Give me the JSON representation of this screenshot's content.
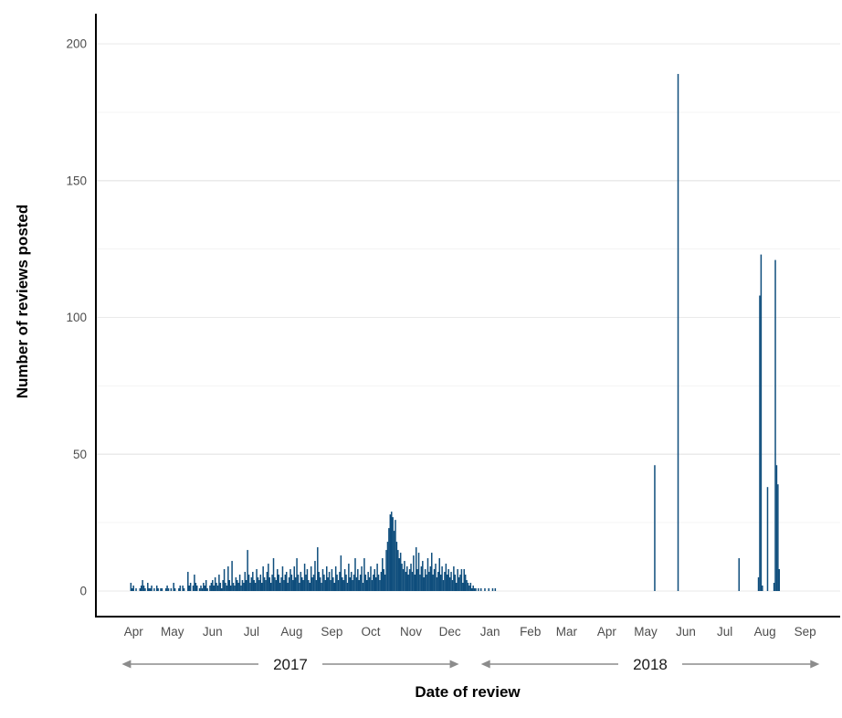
{
  "chart_data": {
    "type": "bar",
    "title": "",
    "xlabel": "Date of review",
    "ylabel": "Number of reviews posted",
    "legend": "none",
    "grid": "horizontal-only",
    "bar_color": "#0e4d7c",
    "axis_line_color": "#000000",
    "major_grid_color": "#eaeaea",
    "minor_grid_color": "#f4f4f4",
    "tick_label_color": "#4d4d4d",
    "annotation_arrow_color": "#8c8c8c",
    "y_axis": {
      "ticks": [
        0,
        50,
        100,
        150,
        200
      ],
      "minor_ticks": [
        25,
        75,
        125,
        175
      ],
      "range": [
        0,
        210
      ]
    },
    "x_axis": {
      "unit": "day",
      "domain": [
        "2017-03-03",
        "2018-09-28"
      ],
      "month_ticks": [
        {
          "label": "Apr",
          "date": "2017-04-01"
        },
        {
          "label": "May",
          "date": "2017-05-01"
        },
        {
          "label": "Jun",
          "date": "2017-06-01"
        },
        {
          "label": "Jul",
          "date": "2017-07-01"
        },
        {
          "label": "Aug",
          "date": "2017-08-01"
        },
        {
          "label": "Sep",
          "date": "2017-09-01"
        },
        {
          "label": "Oct",
          "date": "2017-10-01"
        },
        {
          "label": "Nov",
          "date": "2017-11-01"
        },
        {
          "label": "Dec",
          "date": "2017-12-01"
        },
        {
          "label": "Jan",
          "date": "2018-01-01"
        },
        {
          "label": "Feb",
          "date": "2018-02-01"
        },
        {
          "label": "Mar",
          "date": "2018-03-01"
        },
        {
          "label": "Apr",
          "date": "2018-04-01"
        },
        {
          "label": "May",
          "date": "2018-05-01"
        },
        {
          "label": "Jun",
          "date": "2018-06-01"
        },
        {
          "label": "Jul",
          "date": "2018-07-01"
        },
        {
          "label": "Aug",
          "date": "2018-08-01"
        },
        {
          "label": "Sep",
          "date": "2018-09-01"
        }
      ]
    },
    "year_annotations": [
      {
        "label": "2017",
        "from": "2017-03-23",
        "to": "2017-12-08"
      },
      {
        "label": "2018",
        "from": "2017-12-25",
        "to": "2018-09-12"
      }
    ],
    "daily_series_2017": {
      "start_date": "2017-03-30",
      "values": [
        3,
        1,
        2,
        0,
        1,
        0,
        0,
        1,
        2,
        4,
        2,
        1,
        0,
        3,
        1,
        1,
        2,
        0,
        1,
        0,
        2,
        1,
        0,
        1,
        1,
        0,
        0,
        1,
        2,
        1,
        0,
        1,
        0,
        3,
        1,
        0,
        0,
        1,
        2,
        0,
        2,
        1,
        0,
        0,
        7,
        2,
        3,
        0,
        2,
        6,
        3,
        2,
        0,
        1,
        2,
        1,
        3,
        2,
        4,
        1,
        0,
        2,
        3,
        4,
        2,
        5,
        3,
        2,
        6,
        3,
        1,
        4,
        8,
        3,
        2,
        9,
        4,
        2,
        11,
        3,
        2,
        5,
        4,
        3,
        6,
        2,
        4,
        3,
        7,
        4,
        15,
        6,
        3,
        5,
        7,
        4,
        3,
        8,
        5,
        4,
        6,
        3,
        9,
        5,
        4,
        7,
        10,
        5,
        3,
        6,
        12,
        5,
        4,
        8,
        6,
        3,
        5,
        9,
        4,
        6,
        7,
        3,
        5,
        8,
        6,
        4,
        9,
        5,
        12,
        6,
        3,
        7,
        5,
        4,
        10,
        6,
        8,
        4,
        3,
        9,
        5,
        6,
        11,
        4,
        16,
        7,
        5,
        3,
        8,
        6,
        4,
        9,
        5,
        7,
        4,
        8,
        5,
        3,
        9,
        6,
        4,
        7,
        13,
        5,
        4,
        8,
        6,
        3,
        10,
        5,
        7,
        4,
        6,
        12,
        5,
        8,
        4,
        6,
        9,
        3,
        12,
        6,
        4,
        7,
        5,
        9,
        4,
        6,
        8,
        5,
        10,
        6,
        4,
        7,
        12,
        8,
        6,
        15,
        18,
        23,
        28,
        29,
        27,
        22,
        26,
        18,
        15,
        12,
        14,
        10,
        8,
        11,
        7,
        9,
        6,
        8,
        10,
        7,
        13,
        6,
        16,
        8,
        14,
        6,
        9,
        11,
        5,
        8,
        6,
        12,
        7,
        9,
        14,
        6,
        8,
        10,
        5,
        7,
        12,
        6,
        9,
        4,
        7,
        10,
        6,
        8,
        5,
        7,
        4,
        9,
        6,
        3,
        8,
        5,
        6,
        8,
        3,
        8,
        6,
        4,
        3,
        2,
        3,
        1,
        2,
        1,
        1,
        0,
        1,
        0,
        1,
        0,
        0,
        1,
        0,
        0,
        1,
        0,
        0,
        1,
        0,
        1
      ]
    },
    "spikes_2018": [
      {
        "date": "2018-05-08",
        "value": 46
      },
      {
        "date": "2018-05-26",
        "value": 189
      },
      {
        "date": "2018-07-12",
        "value": 12
      },
      {
        "date": "2018-07-27",
        "value": 5
      },
      {
        "date": "2018-07-28",
        "value": 108
      },
      {
        "date": "2018-07-29",
        "value": 123
      },
      {
        "date": "2018-07-30",
        "value": 2
      },
      {
        "date": "2018-08-03",
        "value": 38
      },
      {
        "date": "2018-08-08",
        "value": 3
      },
      {
        "date": "2018-08-09",
        "value": 121
      },
      {
        "date": "2018-08-10",
        "value": 46
      },
      {
        "date": "2018-08-11",
        "value": 39
      },
      {
        "date": "2018-08-12",
        "value": 8
      }
    ]
  }
}
